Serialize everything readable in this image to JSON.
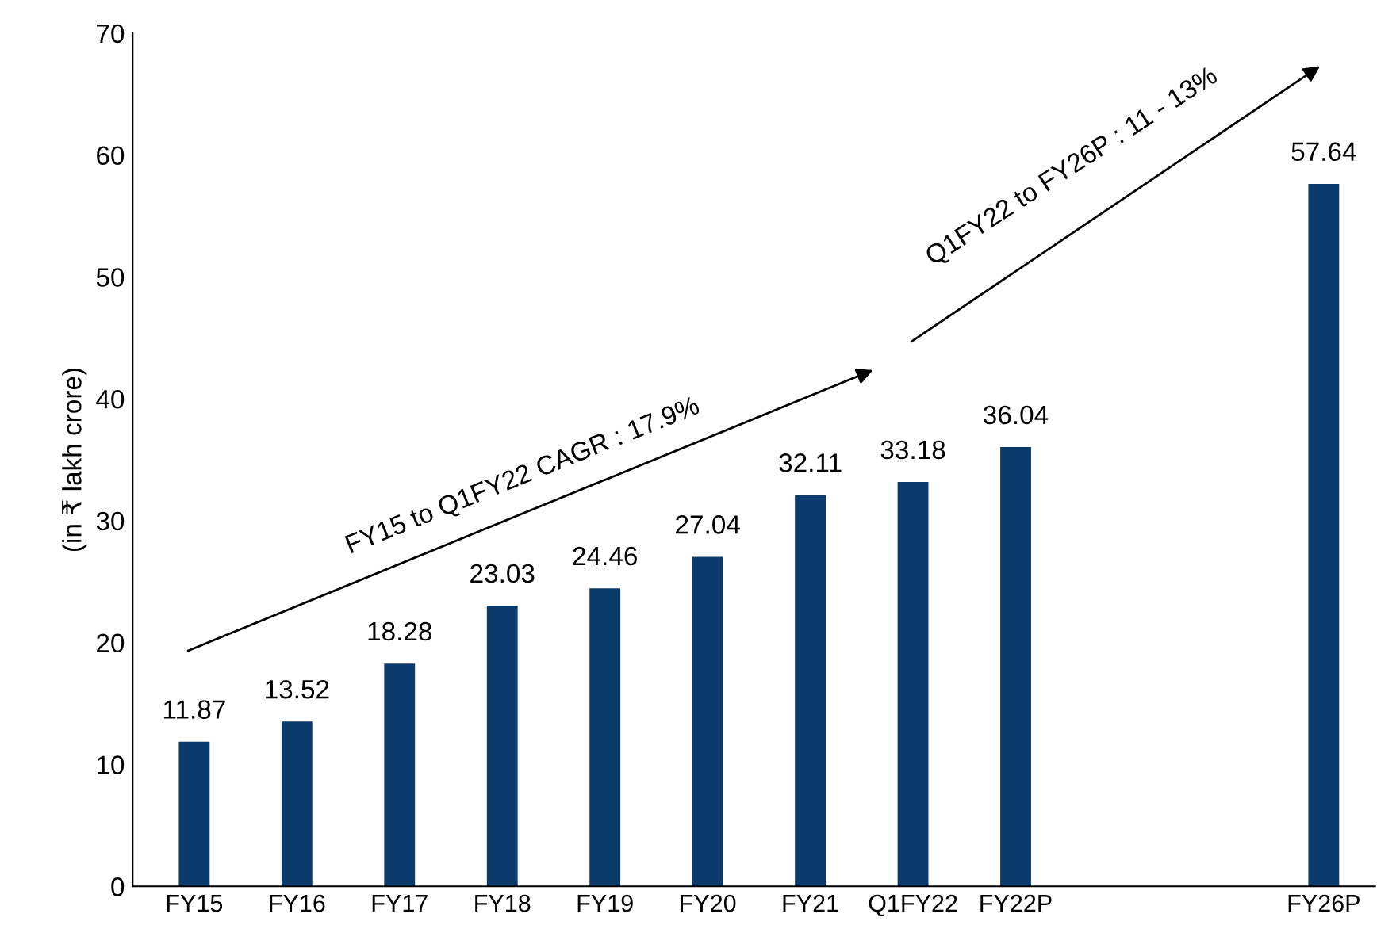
{
  "chart_data": {
    "type": "bar",
    "ylabel": "(in ₹ lakh crore)",
    "categories": [
      "FY15",
      "FY16",
      "FY17",
      "FY18",
      "FY19",
      "FY20",
      "FY21",
      "Q1FY22",
      "FY22P",
      null,
      null,
      "FY26P"
    ],
    "values": [
      11.87,
      13.52,
      18.28,
      23.03,
      24.46,
      27.04,
      32.11,
      33.18,
      36.04,
      null,
      null,
      57.64
    ],
    "color": "#0b3a6b",
    "ylim": [
      0,
      70
    ],
    "yticks": [
      0,
      10,
      20,
      30,
      40,
      50,
      60,
      70
    ],
    "data_labels": true,
    "grid": false,
    "legend": false,
    "annotations": [
      "FY15 to Q1FY22 CAGR : 17.9%",
      "Q1FY22 to FY26P : 11 - 13%"
    ]
  }
}
